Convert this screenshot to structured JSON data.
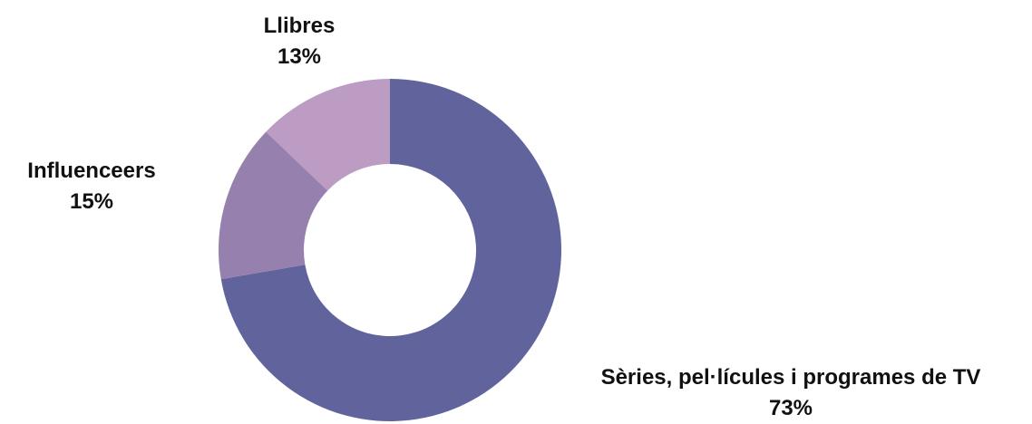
{
  "chart_data": {
    "type": "pie",
    "variant": "donut",
    "slices": [
      {
        "label": "Sèries, pel·lícules i programes de TV",
        "value": 73,
        "value_label": "73%",
        "color": "#61649c"
      },
      {
        "label": "Influenceers",
        "value": 15,
        "value_label": "15%",
        "color": "#9680ae"
      },
      {
        "label": "Llibres",
        "value": 13,
        "value_label": "13%",
        "color": "#bc9cc2"
      }
    ],
    "start": "top",
    "direction": "clockwise",
    "legend": "none"
  }
}
